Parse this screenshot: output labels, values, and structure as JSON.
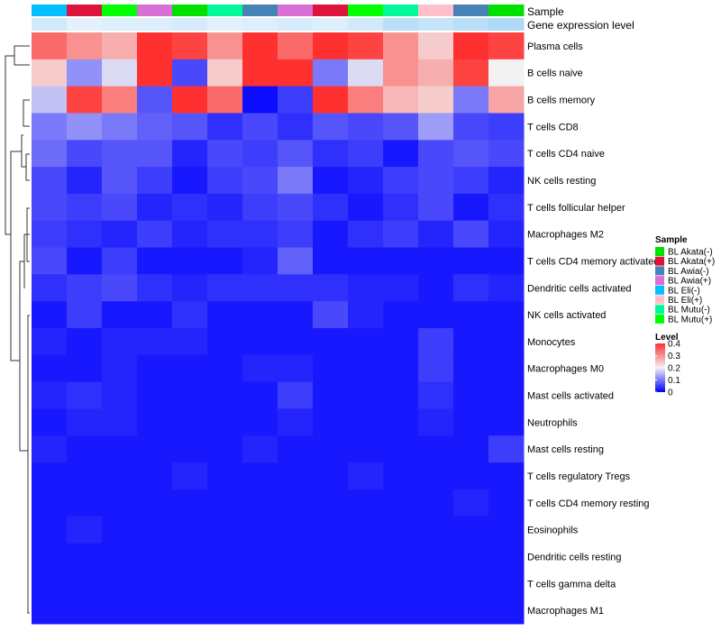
{
  "chart_data": {
    "type": "heatmap",
    "annotation_rows": [
      "Sample",
      "Gene expression level"
    ],
    "row_labels": [
      "Plasma cells",
      "B cells naive",
      "B cells memory",
      "T cells CD8",
      "T cells CD4 naive",
      "NK cells resting",
      "T cells follicular helper",
      "Macrophages M2",
      "T cells CD4 memory activated",
      "Dendritic cells activated",
      "NK cells activated",
      "Monocytes",
      "Macrophages M0",
      "Mast cells activated",
      "Neutrophils",
      "Mast cells resting",
      "T cells regulatory  Tregs",
      "T cells CD4 memory resting",
      "Eosinophils",
      "Dendritic cells resting",
      "T cells gamma delta",
      "Macrophages M1"
    ],
    "column_samples": [
      "BL Eli(-)",
      "BL Akata(+)",
      "BL Mutu(+)",
      "BL Awia(+)",
      "BL Akata(-)",
      "BL Mutu(-)",
      "BL Awia(-)",
      "BL Awia(+)",
      "BL Akata(+)",
      "BL Mutu(+)",
      "BL Mutu(-)",
      "BL Eli(+)",
      "BL Awia(-)",
      "BL Akata(-)"
    ],
    "expression_bar": [
      0.08,
      0.05,
      0.06,
      0.06,
      0.07,
      0.05,
      0.06,
      0.07,
      0.06,
      0.08,
      0.12,
      0.1,
      0.12,
      0.14
    ],
    "values": [
      [
        0.34,
        0.3,
        0.27,
        0.4,
        0.38,
        0.3,
        0.42,
        0.34,
        0.4,
        0.38,
        0.3,
        0.24,
        0.4,
        0.38
      ],
      [
        0.24,
        0.12,
        0.18,
        0.45,
        0.06,
        0.24,
        0.45,
        0.45,
        0.1,
        0.18,
        0.3,
        0.27,
        0.38,
        0.2
      ],
      [
        0.16,
        0.38,
        0.32,
        0.07,
        0.45,
        0.34,
        0.01,
        0.05,
        0.42,
        0.32,
        0.26,
        0.24,
        0.1,
        0.28
      ],
      [
        0.1,
        0.12,
        0.1,
        0.08,
        0.07,
        0.04,
        0.06,
        0.04,
        0.07,
        0.06,
        0.07,
        0.13,
        0.06,
        0.05
      ],
      [
        0.09,
        0.06,
        0.07,
        0.07,
        0.03,
        0.06,
        0.05,
        0.07,
        0.04,
        0.05,
        0.02,
        0.06,
        0.07,
        0.06
      ],
      [
        0.06,
        0.03,
        0.07,
        0.05,
        0.02,
        0.05,
        0.06,
        0.1,
        0.02,
        0.03,
        0.05,
        0.06,
        0.05,
        0.03
      ],
      [
        0.06,
        0.05,
        0.06,
        0.03,
        0.04,
        0.03,
        0.05,
        0.06,
        0.04,
        0.02,
        0.04,
        0.06,
        0.02,
        0.04
      ],
      [
        0.05,
        0.04,
        0.03,
        0.05,
        0.03,
        0.04,
        0.04,
        0.05,
        0.02,
        0.04,
        0.05,
        0.03,
        0.06,
        0.03
      ],
      [
        0.06,
        0.02,
        0.05,
        0.02,
        0.02,
        0.02,
        0.03,
        0.08,
        0.02,
        0.02,
        0.02,
        0.02,
        0.02,
        0.02
      ],
      [
        0.04,
        0.05,
        0.06,
        0.04,
        0.03,
        0.04,
        0.04,
        0.04,
        0.04,
        0.03,
        0.03,
        0.02,
        0.04,
        0.03
      ],
      [
        0.02,
        0.05,
        0.02,
        0.02,
        0.04,
        0.02,
        0.02,
        0.02,
        0.06,
        0.03,
        0.02,
        0.02,
        0.02,
        0.02
      ],
      [
        0.03,
        0.02,
        0.03,
        0.03,
        0.03,
        0.02,
        0.02,
        0.02,
        0.02,
        0.02,
        0.02,
        0.05,
        0.02,
        0.02
      ],
      [
        0.02,
        0.02,
        0.03,
        0.02,
        0.02,
        0.02,
        0.03,
        0.03,
        0.02,
        0.02,
        0.02,
        0.05,
        0.02,
        0.02
      ],
      [
        0.03,
        0.04,
        0.03,
        0.02,
        0.02,
        0.02,
        0.02,
        0.05,
        0.02,
        0.02,
        0.02,
        0.04,
        0.02,
        0.02
      ],
      [
        0.02,
        0.03,
        0.03,
        0.02,
        0.02,
        0.02,
        0.02,
        0.03,
        0.02,
        0.02,
        0.02,
        0.03,
        0.02,
        0.02
      ],
      [
        0.03,
        0.02,
        0.02,
        0.02,
        0.02,
        0.02,
        0.03,
        0.02,
        0.02,
        0.02,
        0.02,
        0.02,
        0.02,
        0.05
      ],
      [
        0.02,
        0.02,
        0.02,
        0.02,
        0.03,
        0.02,
        0.02,
        0.02,
        0.02,
        0.03,
        0.02,
        0.02,
        0.02,
        0.02
      ],
      [
        0.02,
        0.02,
        0.02,
        0.02,
        0.02,
        0.02,
        0.02,
        0.02,
        0.02,
        0.02,
        0.02,
        0.02,
        0.03,
        0.02
      ],
      [
        0.02,
        0.03,
        0.02,
        0.02,
        0.02,
        0.02,
        0.02,
        0.02,
        0.02,
        0.02,
        0.02,
        0.02,
        0.02,
        0.02
      ],
      [
        0.02,
        0.02,
        0.02,
        0.02,
        0.02,
        0.02,
        0.02,
        0.02,
        0.02,
        0.02,
        0.02,
        0.02,
        0.02,
        0.02
      ],
      [
        0.02,
        0.02,
        0.02,
        0.02,
        0.02,
        0.02,
        0.02,
        0.02,
        0.02,
        0.02,
        0.02,
        0.02,
        0.02,
        0.02
      ],
      [
        0.02,
        0.02,
        0.02,
        0.02,
        0.02,
        0.02,
        0.02,
        0.02,
        0.02,
        0.02,
        0.02,
        0.02,
        0.02,
        0.02
      ]
    ],
    "color_scale": {
      "low": "#0000FF",
      "mid": "#F2F2F2",
      "high": "#FF3030",
      "min": 0,
      "mid_value": 0.2,
      "max": 0.4
    },
    "legend": {
      "sample_title": "Sample",
      "sample_items": [
        {
          "label": "BL Akata(-)",
          "color": "#00E000"
        },
        {
          "label": "BL Akata(+)",
          "color": "#DC143C"
        },
        {
          "label": "BL Awia(-)",
          "color": "#4682B4"
        },
        {
          "label": "BL Awia(+)",
          "color": "#DA70D6"
        },
        {
          "label": "BL Eli(-)",
          "color": "#00BFFF"
        },
        {
          "label": "BL Eli(+)",
          "color": "#FFC0CB"
        },
        {
          "label": "BL Mutu(-)",
          "color": "#00FA9A"
        },
        {
          "label": "BL Mutu(+)",
          "color": "#00FF00"
        }
      ],
      "level_title": "Level",
      "level_ticks": [
        {
          "label": "0.4",
          "value": 0.4
        },
        {
          "label": "0.3",
          "value": 0.3
        },
        {
          "label": "0.2",
          "value": 0.2
        },
        {
          "label": "0.1",
          "value": 0.1
        },
        {
          "label": "0",
          "value": 0.0
        }
      ]
    },
    "dendrogram": "rows"
  }
}
